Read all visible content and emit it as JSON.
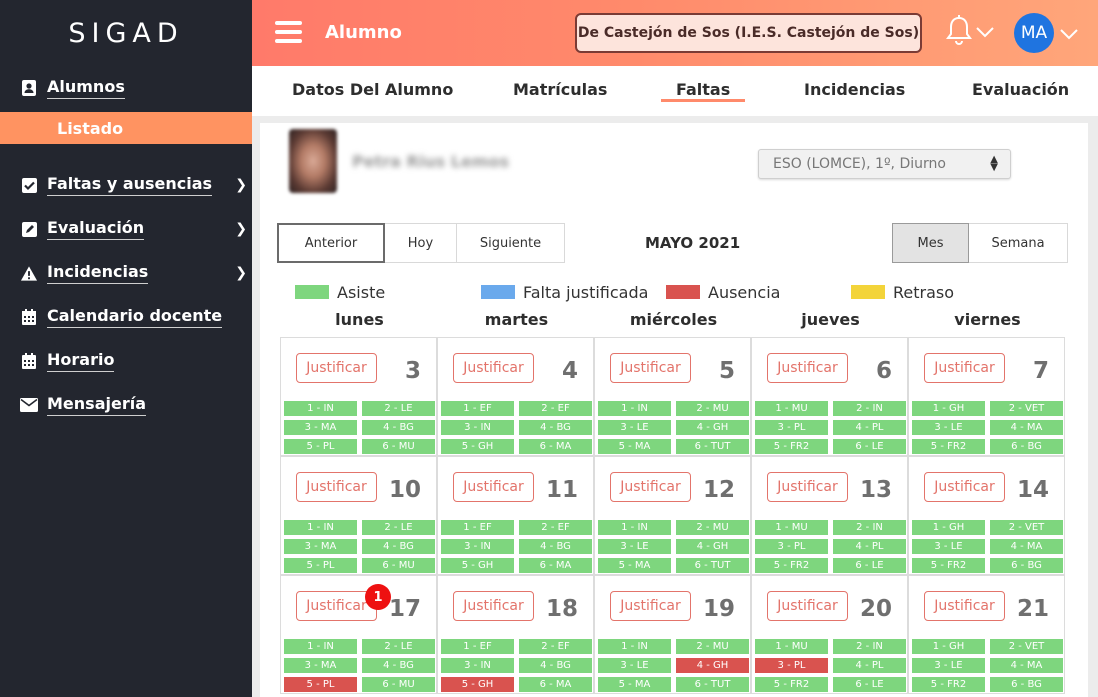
{
  "app": {
    "logo": "SIGAD"
  },
  "sidebar": {
    "items": [
      {
        "label": "Alumnos",
        "icon": "student-card-icon",
        "chevron": false
      },
      {
        "label": "Faltas y ausencias",
        "icon": "checkbox-icon",
        "chevron": true
      },
      {
        "label": "Evaluación",
        "icon": "edit-icon",
        "chevron": true
      },
      {
        "label": "Incidencias",
        "icon": "warning-icon",
        "chevron": true
      },
      {
        "label": "Calendario docente",
        "icon": "calendar-icon",
        "chevron": false
      },
      {
        "label": "Horario",
        "icon": "calendar-icon",
        "chevron": false
      },
      {
        "label": "Mensajería",
        "icon": "envelope-icon",
        "chevron": false
      }
    ],
    "sub_item": "Listado"
  },
  "header": {
    "title": "Alumno",
    "school": "De Castejón de Sos (I.E.S. Castejón de Sos)",
    "avatar": "MA"
  },
  "tabs": [
    "Datos Del Alumno",
    "Matrículas",
    "Faltas",
    "Incidencias",
    "Evaluación"
  ],
  "active_tab": "Faltas",
  "student": {
    "name": "Petra Rius Lemos"
  },
  "course_select": "ESO (LOMCE), 1º, Diurno",
  "calendar": {
    "nav": {
      "prev": "Anterior",
      "today": "Hoy",
      "next": "Siguiente"
    },
    "month": "MAYO 2021",
    "views": {
      "month": "Mes",
      "week": "Semana"
    },
    "legend": [
      {
        "label": "Asiste",
        "color": "#7ed67e"
      },
      {
        "label": "Falta justificada",
        "color": "#6aa9ec"
      },
      {
        "label": "Ausencia",
        "color": "#d9534f"
      },
      {
        "label": "Retraso",
        "color": "#f3d43a"
      }
    ],
    "weekdays": [
      "lunes",
      "martes",
      "miércoles",
      "jueves",
      "viernes"
    ],
    "justify_label": "Justificar",
    "badge": "1",
    "weeks": [
      [
        {
          "day": "3",
          "slots": [
            "1 - IN",
            "2 - LE",
            "3 - MA",
            "4 - BG",
            "5 - PL",
            "6 - MU"
          ],
          "absent": []
        },
        {
          "day": "4",
          "slots": [
            "1 - EF",
            "2 - EF",
            "3 - IN",
            "4 - BG",
            "5 - GH",
            "6 - MA"
          ],
          "absent": []
        },
        {
          "day": "5",
          "slots": [
            "1 - IN",
            "2 - MU",
            "3 - LE",
            "4 - GH",
            "5 - MA",
            "6 - TUT"
          ],
          "absent": []
        },
        {
          "day": "6",
          "slots": [
            "1 - MU",
            "2 - IN",
            "3 - PL",
            "4 - PL",
            "5 - FR2",
            "6 - LE"
          ],
          "absent": []
        },
        {
          "day": "7",
          "slots": [
            "1 - GH",
            "2 - VET",
            "3 - LE",
            "4 - MA",
            "5 - FR2",
            "6 - BG"
          ],
          "absent": []
        }
      ],
      [
        {
          "day": "10",
          "slots": [
            "1 - IN",
            "2 - LE",
            "3 - MA",
            "4 - BG",
            "5 - PL",
            "6 - MU"
          ],
          "absent": []
        },
        {
          "day": "11",
          "slots": [
            "1 - EF",
            "2 - EF",
            "3 - IN",
            "4 - BG",
            "5 - GH",
            "6 - MA"
          ],
          "absent": []
        },
        {
          "day": "12",
          "slots": [
            "1 - IN",
            "2 - MU",
            "3 - LE",
            "4 - GH",
            "5 - MA",
            "6 - TUT"
          ],
          "absent": []
        },
        {
          "day": "13",
          "slots": [
            "1 - MU",
            "2 - IN",
            "3 - PL",
            "4 - PL",
            "5 - FR2",
            "6 - LE"
          ],
          "absent": []
        },
        {
          "day": "14",
          "slots": [
            "1 - GH",
            "2 - VET",
            "3 - LE",
            "4 - MA",
            "5 - FR2",
            "6 - BG"
          ],
          "absent": []
        }
      ],
      [
        {
          "day": "17",
          "slots": [
            "1 - IN",
            "2 - LE",
            "3 - MA",
            "4 - BG",
            "5 - PL",
            "6 - MU"
          ],
          "absent": [
            4
          ],
          "badge": true
        },
        {
          "day": "18",
          "slots": [
            "1 - EF",
            "2 - EF",
            "3 - IN",
            "4 - BG",
            "5 - GH",
            "6 - MA"
          ],
          "absent": [
            4
          ]
        },
        {
          "day": "19",
          "slots": [
            "1 - IN",
            "2 - MU",
            "3 - LE",
            "4 - GH",
            "5 - MA",
            "6 - TUT"
          ],
          "absent": [
            3
          ]
        },
        {
          "day": "20",
          "slots": [
            "1 - MU",
            "2 - IN",
            "3 - PL",
            "4 - PL",
            "5 - FR2",
            "6 - LE"
          ],
          "absent": [
            2
          ]
        },
        {
          "day": "21",
          "slots": [
            "1 - GH",
            "2 - VET",
            "3 - LE",
            "4 - MA",
            "5 - FR2",
            "6 - BG"
          ],
          "absent": []
        }
      ]
    ]
  }
}
